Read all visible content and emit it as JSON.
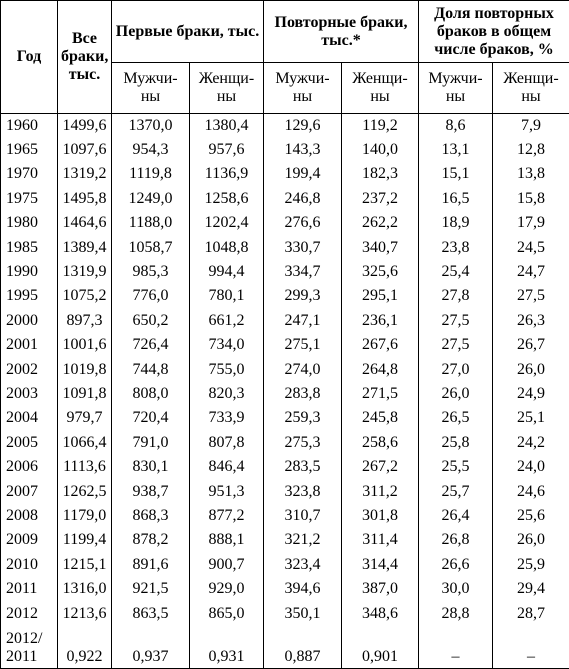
{
  "header": {
    "year": "Год",
    "all": "Все браки, тыс.",
    "first": "Первые браки, тыс.",
    "repeat": "Повторные браки, тыс.*",
    "share": "Доля повторных браков в общем числе браков, %",
    "sub": [
      "Мужчи-ны",
      "Женщи-ны",
      "Мужчи-ны",
      "Женщи-ны",
      "Мужчи-ны",
      "Женщи-ны"
    ]
  },
  "table": {
    "rows": [
      [
        "1960",
        "1499,6",
        "1370,0",
        "1380,4",
        "129,6",
        "119,2",
        "8,6",
        "7,9"
      ],
      [
        "1965",
        "1097,6",
        "954,3",
        "957,6",
        "143,3",
        "140,0",
        "13,1",
        "12,8"
      ],
      [
        "1970",
        "1319,2",
        "1119,8",
        "1136,9",
        "199,4",
        "182,3",
        "15,1",
        "13,8"
      ],
      [
        "1975",
        "1495,8",
        "1249,0",
        "1258,6",
        "246,8",
        "237,2",
        "16,5",
        "15,8"
      ],
      [
        "1980",
        "1464,6",
        "1188,0",
        "1202,4",
        "276,6",
        "262,2",
        "18,9",
        "17,9"
      ],
      [
        "1985",
        "1389,4",
        "1058,7",
        "1048,8",
        "330,7",
        "340,7",
        "23,8",
        "24,5"
      ],
      [
        "1990",
        "1319,9",
        "985,3",
        "994,4",
        "334,7",
        "325,6",
        "25,4",
        "24,7"
      ],
      [
        "1995",
        "1075,2",
        "776,0",
        "780,1",
        "299,3",
        "295,1",
        "27,8",
        "27,5"
      ],
      [
        "2000",
        "897,3",
        "650,2",
        "661,2",
        "247,1",
        "236,1",
        "27,5",
        "26,3"
      ],
      [
        "2001",
        "1001,6",
        "726,4",
        "734,0",
        "275,1",
        "267,6",
        "27,5",
        "26,7"
      ],
      [
        "2002",
        "1019,8",
        "744,8",
        "755,0",
        "274,0",
        "264,8",
        "27,0",
        "26,0"
      ],
      [
        "2003",
        "1091,8",
        "808,0",
        "820,3",
        "283,8",
        "271,5",
        "26,0",
        "24,9"
      ],
      [
        "2004",
        "979,7",
        "720,4",
        "733,9",
        "259,3",
        "245,8",
        "26,5",
        "25,1"
      ],
      [
        "2005",
        "1066,4",
        "791,0",
        "807,8",
        "275,3",
        "258,6",
        "25,8",
        "24,2"
      ],
      [
        "2006",
        "1113,6",
        "830,1",
        "846,4",
        "283,5",
        "267,2",
        "25,5",
        "24,0"
      ],
      [
        "2007",
        "1262,5",
        "938,7",
        "951,3",
        "323,8",
        "311,2",
        "25,7",
        "24,6"
      ],
      [
        "2008",
        "1179,0",
        "868,3",
        "877,2",
        "310,7",
        "301,8",
        "26,4",
        "25,6"
      ],
      [
        "2009",
        "1199,4",
        "878,2",
        "888,1",
        "321,2",
        "311,4",
        "26,8",
        "26,0"
      ],
      [
        "2010",
        "1215,1",
        "891,6",
        "900,7",
        "323,4",
        "314,4",
        "26,6",
        "25,9"
      ],
      [
        "2011",
        "1316,0",
        "921,5",
        "929,0",
        "394,6",
        "387,0",
        "30,0",
        "29,4"
      ],
      [
        "2012",
        "1213,6",
        "863,5",
        "865,0",
        "350,1",
        "348,6",
        "28,8",
        "28,7"
      ],
      [
        "2012/ 2011",
        "0,922",
        "0,937",
        "0,931",
        "0,887",
        "0,901",
        "–",
        "–"
      ]
    ]
  }
}
